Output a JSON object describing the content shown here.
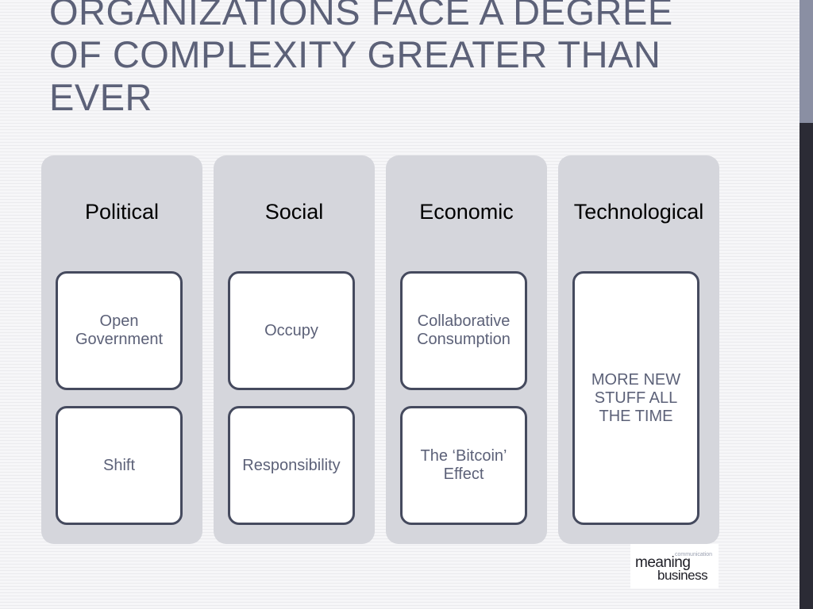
{
  "slide": {
    "title": "ORGANIZATIONS FACE A DEGREE\nOF COMPLEXITY GREATER THAN\nEVER"
  },
  "columns": [
    {
      "title": "Political",
      "cards": [
        "Open\nGovernment",
        "Shift"
      ]
    },
    {
      "title": "Social",
      "cards": [
        "Occupy",
        "Responsibility"
      ]
    },
    {
      "title": "Economic",
      "cards": [
        "Collaborative\nConsumption",
        "The ‘Bitcoin’\nEffect"
      ]
    },
    {
      "title": "Technological",
      "cards": [
        "MORE NEW\nSTUFF ALL\nTHE TIME"
      ]
    }
  ],
  "logo": {
    "word_main": "meaning",
    "word_sub": "business",
    "small_word": "communication"
  },
  "colors": {
    "title": "#5c6178",
    "column_bg": "#d5d6dc",
    "card_border": "#454a5e",
    "accent_bar_light": "#8a8fa3",
    "accent_bar_dark": "#2b2b35"
  }
}
